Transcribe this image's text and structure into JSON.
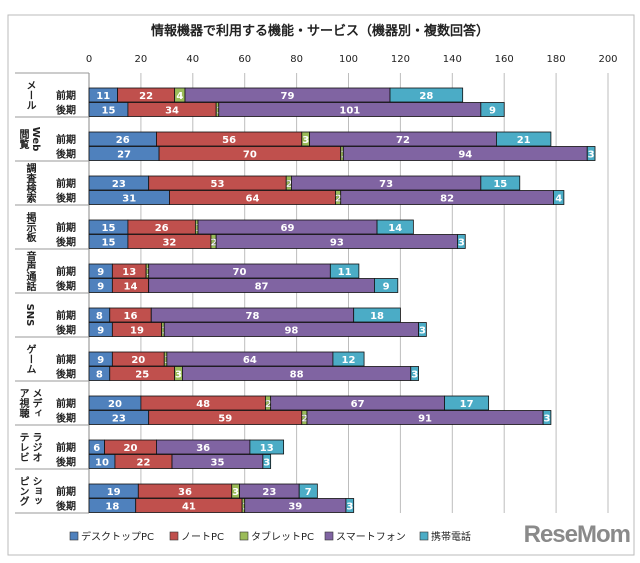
{
  "chart_data": {
    "type": "bar",
    "orientation": "horizontal",
    "stacked": true,
    "title": "情報機器で利用する機能・サービス（機器別・複数回答）",
    "xlim": [
      0,
      200
    ],
    "xticks": [
      0,
      20,
      40,
      60,
      80,
      100,
      120,
      140,
      160,
      180,
      200
    ],
    "grid": true,
    "legend_position": "bottom",
    "periods": [
      "前期",
      "後期"
    ],
    "categories": [
      "メール",
      "Web閲覧",
      "調査検索",
      "掲示板",
      "音声通話",
      "SNS",
      "ゲーム",
      "メディア視聴",
      "ラジオテレビ",
      "ショッピング"
    ],
    "series": [
      {
        "name": "デスクトップPC",
        "color": "#4f81bd",
        "values": [
          [
            11,
            15
          ],
          [
            26,
            27
          ],
          [
            23,
            31
          ],
          [
            15,
            15
          ],
          [
            9,
            9
          ],
          [
            8,
            9
          ],
          [
            9,
            8
          ],
          [
            20,
            23
          ],
          [
            6,
            10
          ],
          [
            19,
            18
          ]
        ]
      },
      {
        "name": "ノートPC",
        "color": "#c0504d",
        "values": [
          [
            22,
            34
          ],
          [
            56,
            70
          ],
          [
            53,
            64
          ],
          [
            26,
            32
          ],
          [
            13,
            14
          ],
          [
            16,
            19
          ],
          [
            20,
            25
          ],
          [
            48,
            59
          ],
          [
            20,
            22
          ],
          [
            36,
            41
          ]
        ]
      },
      {
        "name": "タブレットPC",
        "color": "#9bbb59",
        "values": [
          [
            4,
            1
          ],
          [
            3,
            1
          ],
          [
            2,
            2
          ],
          [
            1,
            2
          ],
          [
            1,
            0
          ],
          [
            0,
            1
          ],
          [
            1,
            3
          ],
          [
            2,
            2
          ],
          [
            0,
            0
          ],
          [
            3,
            1
          ]
        ]
      },
      {
        "name": "スマートフォン",
        "color": "#8064a2",
        "values": [
          [
            79,
            101
          ],
          [
            72,
            94
          ],
          [
            73,
            82
          ],
          [
            69,
            93
          ],
          [
            70,
            87
          ],
          [
            78,
            98
          ],
          [
            64,
            88
          ],
          [
            67,
            91
          ],
          [
            36,
            35
          ],
          [
            23,
            39
          ]
        ]
      },
      {
        "name": "携帯電話",
        "color": "#4bacc6",
        "values": [
          [
            28,
            9
          ],
          [
            21,
            3
          ],
          [
            15,
            4
          ],
          [
            14,
            3
          ],
          [
            11,
            9
          ],
          [
            18,
            3
          ],
          [
            12,
            3
          ],
          [
            17,
            3
          ],
          [
            13,
            3
          ],
          [
            7,
            3
          ]
        ]
      }
    ]
  },
  "watermark": "ReseMom"
}
